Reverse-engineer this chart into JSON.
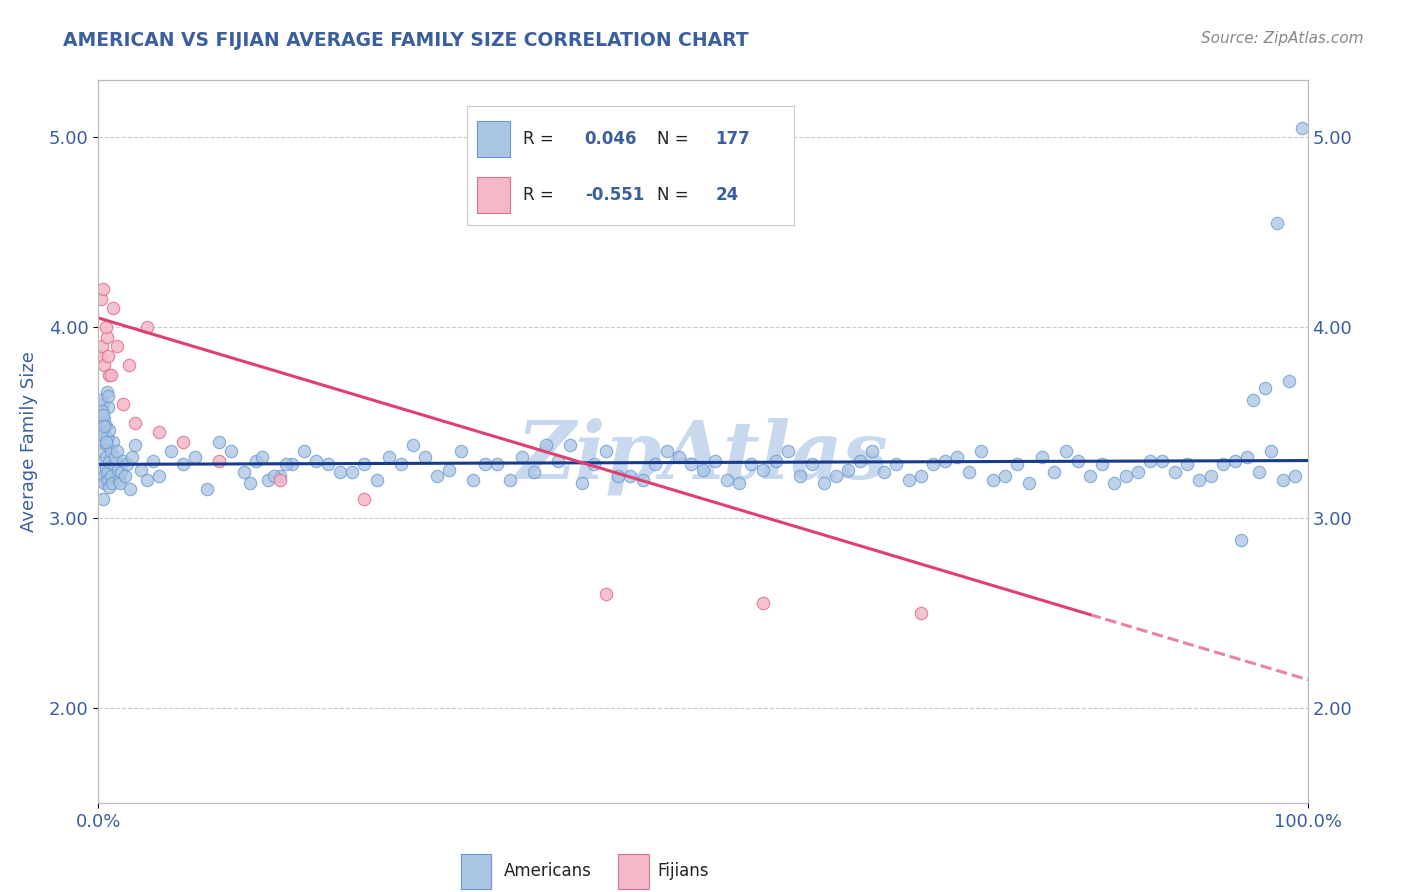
{
  "title": "AMERICAN VS FIJIAN AVERAGE FAMILY SIZE CORRELATION CHART",
  "source_text": "Source: ZipAtlas.com",
  "ylabel": "Average Family Size",
  "xlim": [
    0.0,
    1.0
  ],
  "ylim": [
    1.5,
    5.3
  ],
  "yticks": [
    2.0,
    3.0,
    4.0,
    5.0
  ],
  "xtick_labels": [
    "0.0%",
    "100.0%"
  ],
  "title_color": "#3a5fa0",
  "axis_color": "#3a5fa0",
  "watermark_text": "ZipAtlas",
  "watermark_color": "#c8d8ee",
  "american_fill_color": "#aac4e4",
  "american_edge_color": "#6699cc",
  "american_line_color": "#1a3a8a",
  "fijian_fill_color": "#f4b8c8",
  "fijian_edge_color": "#e07090",
  "fijian_line_color": "#e04070",
  "legend_val_color": "#3a5fa0",
  "legend_text_color": "#222222",
  "grid_color": "#cccccc",
  "american_x": [
    0.001,
    0.002,
    0.002,
    0.003,
    0.003,
    0.004,
    0.004,
    0.005,
    0.005,
    0.006,
    0.006,
    0.007,
    0.007,
    0.008,
    0.009,
    0.009,
    0.01,
    0.01,
    0.011,
    0.012,
    0.013,
    0.014,
    0.015,
    0.016,
    0.017,
    0.018,
    0.019,
    0.02,
    0.022,
    0.024,
    0.026,
    0.028,
    0.03,
    0.035,
    0.04,
    0.045,
    0.001,
    0.002,
    0.003,
    0.004,
    0.005,
    0.006,
    0.007,
    0.008,
    0.009,
    0.001,
    0.002,
    0.003,
    0.004,
    0.005,
    0.006,
    0.007,
    0.008,
    0.05,
    0.06,
    0.07,
    0.08,
    0.09,
    0.1,
    0.12,
    0.14,
    0.16,
    0.18,
    0.2,
    0.22,
    0.24,
    0.26,
    0.28,
    0.3,
    0.32,
    0.34,
    0.36,
    0.38,
    0.4,
    0.42,
    0.44,
    0.46,
    0.48,
    0.5,
    0.52,
    0.54,
    0.56,
    0.58,
    0.6,
    0.62,
    0.64,
    0.66,
    0.68,
    0.7,
    0.72,
    0.74,
    0.76,
    0.78,
    0.8,
    0.82,
    0.84,
    0.86,
    0.88,
    0.9,
    0.92,
    0.94,
    0.96,
    0.98,
    0.39,
    0.41,
    0.43,
    0.45,
    0.47,
    0.49,
    0.51,
    0.53,
    0.55,
    0.57,
    0.59,
    0.61,
    0.63,
    0.65,
    0.67,
    0.69,
    0.71,
    0.73,
    0.75,
    0.77,
    0.79,
    0.81,
    0.83,
    0.85,
    0.87,
    0.89,
    0.91,
    0.93,
    0.95,
    0.97,
    0.99,
    0.13,
    0.15,
    0.17,
    0.19,
    0.21,
    0.23,
    0.25,
    0.27,
    0.29,
    0.31,
    0.33,
    0.35,
    0.37,
    0.11,
    0.125,
    0.135,
    0.145,
    0.155,
    0.995,
    0.975,
    0.955,
    0.965,
    0.945,
    0.985
  ],
  "american_y": [
    3.3,
    3.4,
    3.25,
    3.35,
    3.2,
    3.45,
    3.1,
    3.22,
    3.18,
    3.32,
    3.26,
    3.24,
    3.38,
    3.2,
    3.29,
    3.16,
    3.22,
    3.35,
    3.18,
    3.4,
    3.28,
    3.32,
    3.35,
    3.25,
    3.2,
    3.18,
    3.24,
    3.3,
    3.22,
    3.28,
    3.15,
    3.32,
    3.38,
    3.25,
    3.2,
    3.3,
    3.5,
    3.55,
    3.45,
    3.6,
    3.52,
    3.48,
    3.42,
    3.58,
    3.46,
    3.62,
    3.44,
    3.56,
    3.54,
    3.48,
    3.4,
    3.66,
    3.64,
    3.22,
    3.35,
    3.28,
    3.32,
    3.15,
    3.4,
    3.24,
    3.2,
    3.28,
    3.3,
    3.24,
    3.28,
    3.32,
    3.38,
    3.22,
    3.35,
    3.28,
    3.2,
    3.24,
    3.3,
    3.18,
    3.35,
    3.22,
    3.28,
    3.32,
    3.25,
    3.2,
    3.28,
    3.3,
    3.22,
    3.18,
    3.25,
    3.35,
    3.28,
    3.22,
    3.3,
    3.24,
    3.2,
    3.28,
    3.32,
    3.35,
    3.22,
    3.18,
    3.24,
    3.3,
    3.28,
    3.22,
    3.3,
    3.24,
    3.2,
    3.38,
    3.28,
    3.22,
    3.2,
    3.35,
    3.28,
    3.3,
    3.18,
    3.25,
    3.35,
    3.28,
    3.22,
    3.3,
    3.24,
    3.2,
    3.28,
    3.32,
    3.35,
    3.22,
    3.18,
    3.24,
    3.3,
    3.28,
    3.22,
    3.3,
    3.24,
    3.2,
    3.28,
    3.32,
    3.35,
    3.22,
    3.3,
    3.22,
    3.35,
    3.28,
    3.24,
    3.2,
    3.28,
    3.32,
    3.25,
    3.2,
    3.28,
    3.32,
    3.38,
    3.35,
    3.18,
    3.32,
    3.22,
    3.28,
    5.05,
    4.55,
    3.62,
    3.68,
    2.88,
    3.72
  ],
  "fijian_x": [
    0.001,
    0.002,
    0.003,
    0.004,
    0.005,
    0.007,
    0.009,
    0.012,
    0.015,
    0.02,
    0.025,
    0.03,
    0.04,
    0.05,
    0.07,
    0.1,
    0.15,
    0.22,
    0.42,
    0.55,
    0.68,
    0.01,
    0.008,
    0.006
  ],
  "fijian_y": [
    3.85,
    4.15,
    3.9,
    4.2,
    3.8,
    3.95,
    3.75,
    4.1,
    3.9,
    3.6,
    3.8,
    3.5,
    4.0,
    3.45,
    3.4,
    3.3,
    3.2,
    3.1,
    2.6,
    2.55,
    2.5,
    3.75,
    3.85,
    4.0
  ],
  "background_color": "#ffffff"
}
